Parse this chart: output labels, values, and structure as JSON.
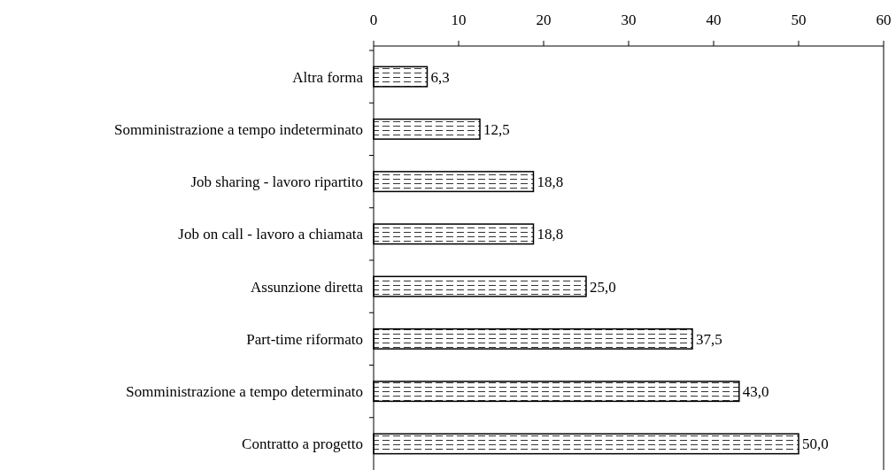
{
  "chart_data": {
    "type": "bar",
    "orientation": "horizontal",
    "categories": [
      "Altra forma",
      "Somministrazione a tempo indeterminato",
      "Job sharing - lavoro ripartito",
      "Job on call - lavoro a chiamata",
      "Assunzione diretta",
      "Part-time riformato",
      "Somministrazione a tempo determinato",
      "Contratto a progetto"
    ],
    "values": [
      6.3,
      12.5,
      18.8,
      18.8,
      25.0,
      37.5,
      43.0,
      50.0
    ],
    "value_labels": [
      "6,3",
      "12,5",
      "18,8",
      "18,8",
      "25,0",
      "37,5",
      "43,0",
      "50,0"
    ],
    "color": "#000000",
    "xlim": [
      0,
      60
    ],
    "xticks": [
      0,
      10,
      20,
      30,
      40,
      50,
      60
    ],
    "grid": false
  }
}
